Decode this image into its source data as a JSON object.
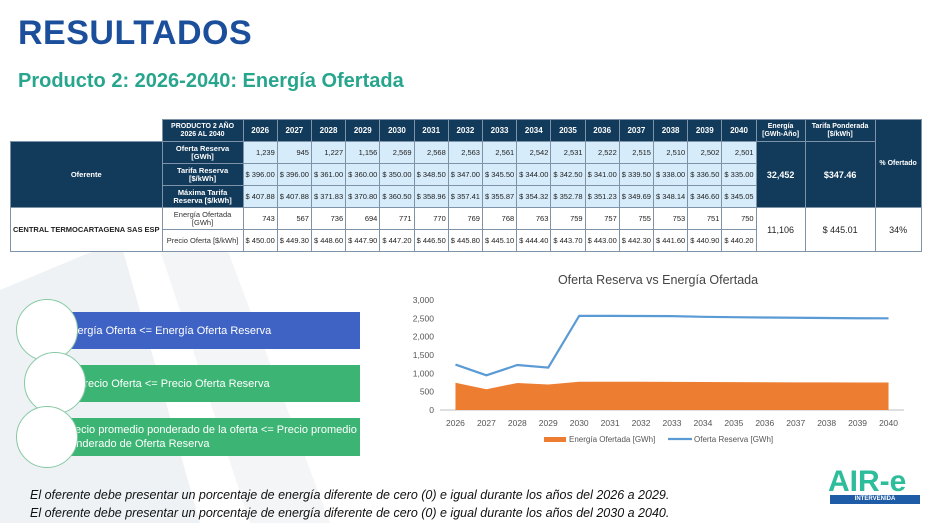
{
  "title": "RESULTADOS",
  "subtitle": "Producto 2: 2026-2040: Energía Ofertada",
  "table": {
    "product_header": "PRODUCTO 2 AÑO 2026 AL 2040",
    "years": [
      "2026",
      "2027",
      "2028",
      "2029",
      "2030",
      "2031",
      "2032",
      "2033",
      "2034",
      "2035",
      "2036",
      "2037",
      "2038",
      "2039",
      "2040"
    ],
    "energia_header": "Energía [GWh-Año]",
    "tarifa_header": "Tarifa Ponderada [$/kWh]",
    "pct_header": "% Ofertado",
    "oferente_label": "Oferente",
    "reserva_rows": [
      {
        "label": "Oferta Reserva [GWh]",
        "values": [
          "1,239",
          "945",
          "1,227",
          "1,156",
          "2,569",
          "2,568",
          "2,563",
          "2,561",
          "2,542",
          "2,531",
          "2,522",
          "2,515",
          "2,510",
          "2,502",
          "2,501"
        ]
      },
      {
        "label": "Tarifa Reserva [$/kWh]",
        "values": [
          "$ 396.00",
          "$ 396.00",
          "$ 361.00",
          "$ 360.00",
          "$ 350.00",
          "$ 348.50",
          "$ 347.00",
          "$ 345.50",
          "$ 344.00",
          "$ 342.50",
          "$ 341.00",
          "$ 339.50",
          "$ 338.00",
          "$ 336.50",
          "$ 335.00"
        ]
      },
      {
        "label": "Máxima Tarifa Reserva [$/kWh]",
        "values": [
          "$ 407.88",
          "$ 407.88",
          "$ 371.83",
          "$ 370.80",
          "$ 360.50",
          "$ 358.96",
          "$ 357.41",
          "$ 355.87",
          "$ 354.32",
          "$ 352.78",
          "$ 351.23",
          "$ 349.69",
          "$ 348.14",
          "$ 346.60",
          "$ 345.05"
        ]
      }
    ],
    "reserva_energia": "32,452",
    "reserva_tarifa": "$347.46",
    "oferente_name": "CENTRAL TERMOCARTAGENA SAS ESP",
    "oferente_rows": [
      {
        "label": "Energía Ofertada [GWh]",
        "values": [
          "743",
          "567",
          "736",
          "694",
          "771",
          "770",
          "769",
          "768",
          "763",
          "759",
          "757",
          "755",
          "753",
          "751",
          "750"
        ]
      },
      {
        "label": "Precio Oferta [$/kWh]",
        "values": [
          "$ 450.00",
          "$ 449.30",
          "$ 448.60",
          "$ 447.90",
          "$ 447.20",
          "$ 446.50",
          "$ 445.80",
          "$ 445.10",
          "$ 444.40",
          "$ 443.70",
          "$ 443.00",
          "$ 442.30",
          "$ 441.60",
          "$ 440.90",
          "$ 440.20"
        ]
      }
    ],
    "oferente_energia": "11,106",
    "oferente_tarifa": "$ 445.01",
    "oferente_pct": "34%"
  },
  "conditions": [
    {
      "text": "Energía Oferta <= Energía Oferta Reserva"
    },
    {
      "text": "Precio Oferta <= Precio Oferta Reserva"
    },
    {
      "text": "Precio promedio ponderado de la oferta <= Precio promedio ponderado de Oferta Reserva"
    }
  ],
  "notes": [
    "El oferente debe presentar un porcentaje de energía diferente de cero (0) e igual durante los años del 2026 a 2029.",
    "El oferente debe presentar un porcentaje de energía diferente de cero (0) e igual durante los años del 2030 a 2040."
  ],
  "logo": {
    "text": "AIR-e",
    "tagline": "INTERVENIDA SUPERSERVICIOS"
  },
  "colors": {
    "title": "#1b4f9c",
    "subtitle": "#27a58d",
    "table_header": "#123a5a",
    "area": "#ed7d31",
    "line": "#5b9bd5"
  },
  "chart_data": {
    "type": "area",
    "title": "Oferta Reserva vs Energía Ofertada",
    "x": [
      "2026",
      "2027",
      "2028",
      "2029",
      "2030",
      "2031",
      "2032",
      "2033",
      "2034",
      "2035",
      "2036",
      "2037",
      "2038",
      "2039",
      "2040"
    ],
    "yticks": [
      "0",
      "500",
      "1,000",
      "1,500",
      "2,000",
      "2,500",
      "3,000"
    ],
    "ylim": [
      0,
      3000
    ],
    "series": [
      {
        "name": "Energía Ofertada [GWh]",
        "type": "area",
        "color": "#ed7d31",
        "values": [
          743,
          567,
          736,
          694,
          771,
          770,
          769,
          768,
          763,
          759,
          757,
          755,
          753,
          751,
          750
        ]
      },
      {
        "name": "Oferta Reserva [GWh]",
        "type": "line",
        "color": "#5b9bd5",
        "values": [
          1239,
          945,
          1227,
          1156,
          2569,
          2568,
          2563,
          2561,
          2542,
          2531,
          2522,
          2515,
          2510,
          2502,
          2501
        ]
      }
    ],
    "legend": "bottom",
    "grid": false
  }
}
